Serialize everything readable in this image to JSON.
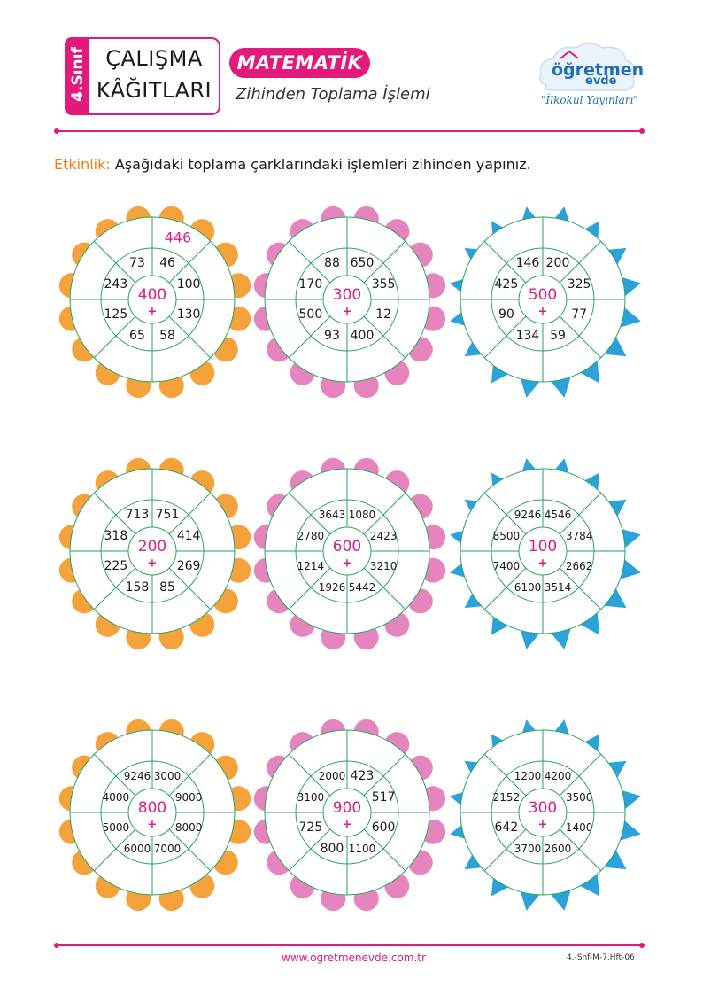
{
  "header": {
    "grade": "4.Sınıf",
    "title_line1": "ÇALIŞMA",
    "title_line2": "KÂĞITLARI",
    "subject": "MATEMATİK",
    "topic": "Zihinden Toplama İşlemi",
    "logo_text1": "öğretmen",
    "logo_text2": "evde",
    "logo_tag": "\"İlkokul Yayınları\""
  },
  "instruction": {
    "label": "Etkinlik:",
    "text": "Aşağıdaki toplama çarklarındaki işlemleri zihinden yapınız."
  },
  "colors": {
    "accent": "#e4197c",
    "orange": "#f5a23a",
    "pink": "#e684bd",
    "blue": "#2aa3dc",
    "line": "#27a463"
  },
  "wheels": [
    {
      "center": "400",
      "plus": "+",
      "petal": "orange",
      "answer": "446",
      "numbers": [
        "46",
        "100",
        "130",
        "58",
        "65",
        "125",
        "243",
        "73"
      ]
    },
    {
      "center": "300",
      "plus": "+",
      "petal": "pink",
      "numbers": [
        "650",
        "355",
        "12",
        "400",
        "93",
        "500",
        "170",
        "88"
      ]
    },
    {
      "center": "500",
      "plus": "+",
      "petal": "blue",
      "numbers": [
        "200",
        "325",
        "77",
        "59",
        "134",
        "90",
        "425",
        "146"
      ]
    },
    {
      "center": "200",
      "plus": "+",
      "petal": "orange",
      "numbers": [
        "751",
        "414",
        "269",
        "85",
        "158",
        "225",
        "318",
        "713"
      ]
    },
    {
      "center": "600",
      "plus": "+",
      "petal": "pink",
      "numbers": [
        "1080",
        "2423",
        "3210",
        "5442",
        "1926",
        "1214",
        "2780",
        "3643"
      ]
    },
    {
      "center": "100",
      "plus": "+",
      "petal": "blue",
      "numbers": [
        "4546",
        "3784",
        "2662",
        "3514",
        "6100",
        "7400",
        "8500",
        "9246"
      ]
    },
    {
      "center": "800",
      "plus": "+",
      "petal": "orange",
      "numbers": [
        "3000",
        "9000",
        "8000",
        "7000",
        "6000",
        "5000",
        "4000",
        "9246"
      ]
    },
    {
      "center": "900",
      "plus": "+",
      "petal": "pink",
      "numbers": [
        "423",
        "517",
        "600",
        "1100",
        "800",
        "725",
        "3100",
        "2000"
      ]
    },
    {
      "center": "300",
      "plus": "+",
      "petal": "blue",
      "numbers": [
        "4200",
        "3500",
        "1400",
        "2600",
        "3700",
        "642",
        "2152",
        "1200"
      ]
    }
  ],
  "footer": {
    "url": "www.ogretmenevde.com.tr",
    "code": "4.-Snf-M-7.Hft-06"
  }
}
